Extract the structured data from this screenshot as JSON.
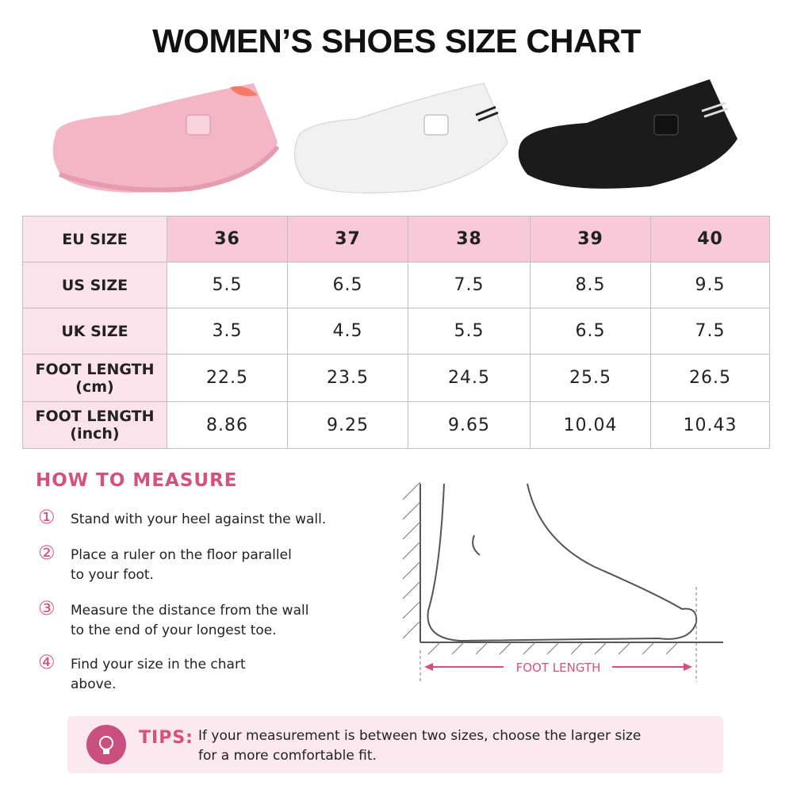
{
  "title": "WOMEN’S SHOES SIZE CHART",
  "table": {
    "rows": [
      {
        "label": [
          "EU SIZE"
        ],
        "cells": [
          "36",
          "37",
          "38",
          "39",
          "40"
        ]
      },
      {
        "label": [
          "US SIZE"
        ],
        "cells": [
          "5.5",
          "6.5",
          "7.5",
          "8.5",
          "9.5"
        ]
      },
      {
        "label": [
          "UK SIZE"
        ],
        "cells": [
          "3.5",
          "4.5",
          "5.5",
          "6.5",
          "7.5"
        ]
      },
      {
        "label": [
          "FOOT LENGTH",
          "(cm)"
        ],
        "cells": [
          "22.5",
          "23.5",
          "24.5",
          "25.5",
          "26.5"
        ]
      },
      {
        "label": [
          "FOOT LENGTH",
          "(inch)"
        ],
        "cells": [
          "8.86",
          "9.25",
          "9.65",
          "10.04",
          "10.43"
        ]
      }
    ]
  },
  "measure": {
    "heading": "HOW TO MEASURE",
    "steps": [
      {
        "number": "①",
        "lines": [
          "Stand with your heel against the wall."
        ]
      },
      {
        "number": "②",
        "lines": [
          "Place a ruler on the floor parallel",
          "to your foot."
        ]
      },
      {
        "number": "③",
        "lines": [
          "Measure the distance from the wall",
          "to the end of your longest toe."
        ]
      },
      {
        "number": "④",
        "lines": [
          "Find your size in the chart",
          "above."
        ]
      }
    ]
  },
  "diagram": {
    "label": "FOOT LENGTH"
  },
  "tips": {
    "label": "TIPS:",
    "lines": [
      "If your measurement is between two sizes, choose the larger size",
      "for a more comfortable fit."
    ]
  }
}
